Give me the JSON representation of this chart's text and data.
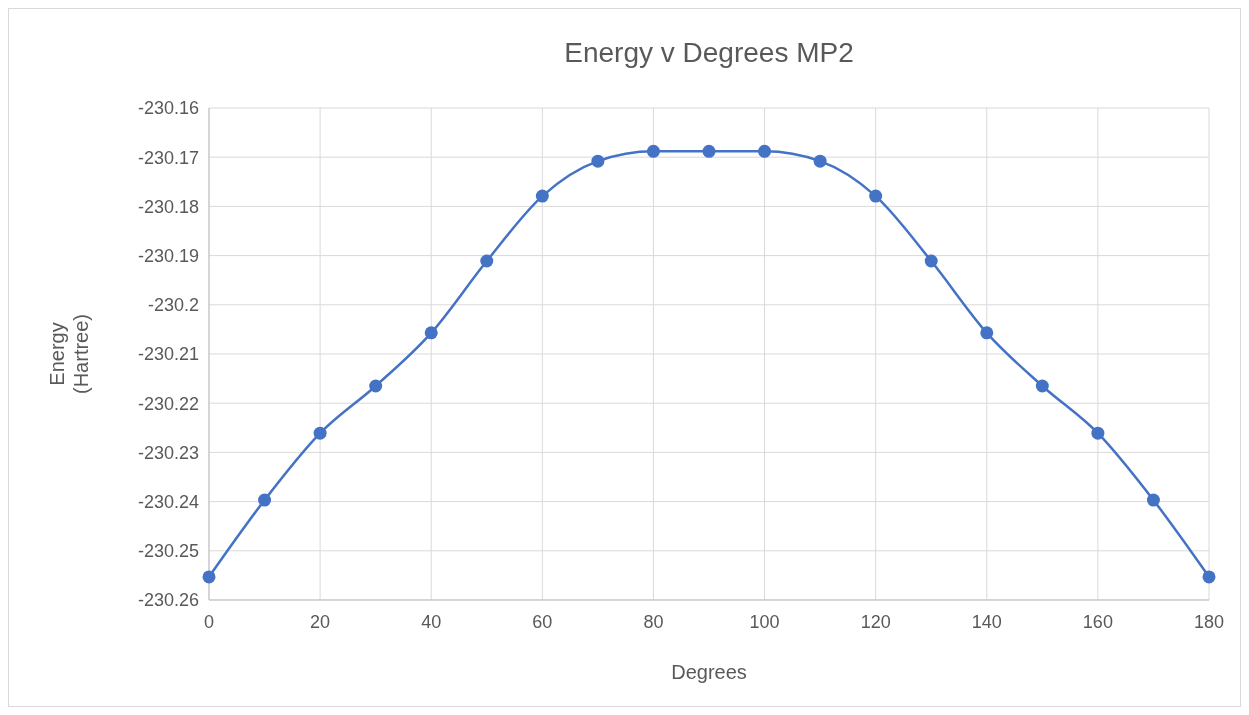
{
  "chart_data": {
    "type": "line",
    "title": "Energy v Degrees MP2",
    "xlabel": "Degrees",
    "ylabel": "Energy (Hartree)",
    "x": [
      0,
      10,
      20,
      30,
      40,
      50,
      60,
      70,
      80,
      90,
      100,
      110,
      120,
      130,
      140,
      150,
      160,
      170,
      180
    ],
    "series": [
      {
        "color": "#4472c4",
        "values": [
          -230.2553,
          -230.2397,
          -230.2261,
          -230.2165,
          -230.2057,
          -230.1911,
          -230.1779,
          -230.1708,
          -230.1688,
          -230.1688,
          -230.1688,
          -230.1708,
          -230.1779,
          -230.1911,
          -230.2057,
          -230.2165,
          -230.2261,
          -230.2397,
          -230.2553
        ]
      }
    ],
    "xlim": [
      0,
      180
    ],
    "xticks": [
      0,
      20,
      40,
      60,
      80,
      100,
      120,
      140,
      160,
      180
    ],
    "ylim": [
      -230.26,
      -230.16
    ],
    "yticks": [
      -230.26,
      -230.25,
      -230.24,
      -230.23,
      -230.22,
      -230.21,
      -230.2,
      -230.19,
      -230.18,
      -230.17,
      -230.16
    ],
    "grid": true,
    "marker": "circle",
    "line_style": "solid"
  }
}
